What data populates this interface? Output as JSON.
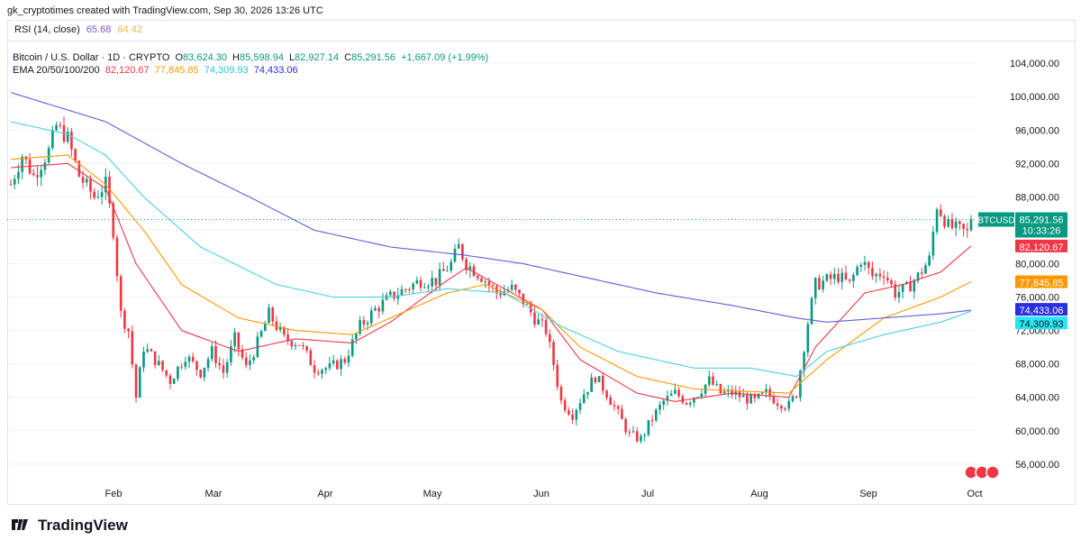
{
  "header": {
    "credit": "gk_cryptotimes created with TradingView.com, Sep 30, 2026 13:26 UTC"
  },
  "rsi": {
    "label": "RSI (14, close)",
    "value1": "65.68",
    "value2": "64.42",
    "color1": "#7e57c2",
    "color2": "#f0b44c"
  },
  "legend": {
    "symbol": "Bitcoin / U.S. Dollar · 1D · CRYPTO",
    "o_label": "O",
    "o_value": "83,624.30",
    "h_label": "H",
    "h_value": "85,598.94",
    "l_label": "L",
    "l_value": "82,927.14",
    "c_label": "C",
    "c_value": "85,291.56",
    "change": "+1,667.09 (+1.99%)",
    "ema_label": "EMA 20/50/100/200",
    "ema20": "82,120.67",
    "ema50": "77,845.85",
    "ema100": "74,309.93",
    "ema200": "74,433.06"
  },
  "badges": {
    "symbol": "BTCUSD",
    "price": "85,291.56",
    "countdown": "10:33:26"
  },
  "footer": {
    "brand": "TradingView"
  },
  "colors": {
    "up": "#089981",
    "down": "#f23645",
    "ema20": "#f23645",
    "ema50": "#ff9800",
    "ema100": "#4dd0e1",
    "ema200": "#5b5fd8",
    "grid": "#f0f3fa"
  },
  "chart_data": {
    "type": "candlestick",
    "symbol": "BTCUSD",
    "interval": "1D",
    "y_axis_ticks": [
      56000,
      60000,
      64000,
      68000,
      72000,
      76000,
      80000,
      84000,
      88000,
      92000,
      96000,
      100000,
      104000
    ],
    "y_tick_labels": [
      "56,000.00",
      "60,000.00",
      "64,000.00",
      "68,000.00",
      "72,000.00",
      "76,000.00",
      "80,000.00",
      "84,000.00",
      "88,000.00",
      "92,000.00",
      "96,000.00",
      "100,000.00",
      "104,000.00"
    ],
    "ylim": [
      53500,
      106500
    ],
    "x_tick_labels": [
      "Feb",
      "Mar",
      "Apr",
      "May",
      "Jun",
      "Jul",
      "Aug",
      "Sep",
      "Oct"
    ],
    "price_key": [
      {
        "day": 0,
        "price": 89500
      },
      {
        "day": 3,
        "price": 93000
      },
      {
        "day": 6,
        "price": 90500
      },
      {
        "day": 10,
        "price": 93500
      },
      {
        "day": 12,
        "price": 96500
      },
      {
        "day": 15,
        "price": 95000
      },
      {
        "day": 18,
        "price": 90500
      },
      {
        "day": 22,
        "price": 88000
      },
      {
        "day": 25,
        "price": 89500
      },
      {
        "day": 27,
        "price": 84000
      },
      {
        "day": 29,
        "price": 74000
      },
      {
        "day": 31,
        "price": 72000
      },
      {
        "day": 33,
        "price": 64000
      },
      {
        "day": 35,
        "price": 70000
      },
      {
        "day": 38,
        "price": 68500
      },
      {
        "day": 42,
        "price": 66000
      },
      {
        "day": 46,
        "price": 69000
      },
      {
        "day": 50,
        "price": 67000
      },
      {
        "day": 53,
        "price": 69500
      },
      {
        "day": 56,
        "price": 67000
      },
      {
        "day": 59,
        "price": 71000
      },
      {
        "day": 62,
        "price": 67500
      },
      {
        "day": 65,
        "price": 70500
      },
      {
        "day": 68,
        "price": 74000
      },
      {
        "day": 72,
        "price": 71000
      },
      {
        "day": 76,
        "price": 70500
      },
      {
        "day": 80,
        "price": 67500
      },
      {
        "day": 84,
        "price": 67500
      },
      {
        "day": 88,
        "price": 68500
      },
      {
        "day": 92,
        "price": 72500
      },
      {
        "day": 96,
        "price": 74500
      },
      {
        "day": 100,
        "price": 76000
      },
      {
        "day": 104,
        "price": 77000
      },
      {
        "day": 108,
        "price": 78000
      },
      {
        "day": 112,
        "price": 78000
      },
      {
        "day": 116,
        "price": 80000
      },
      {
        "day": 118,
        "price": 82000
      },
      {
        "day": 120,
        "price": 80000
      },
      {
        "day": 124,
        "price": 78500
      },
      {
        "day": 128,
        "price": 76500
      },
      {
        "day": 132,
        "price": 77000
      },
      {
        "day": 135,
        "price": 75500
      },
      {
        "day": 138,
        "price": 73500
      },
      {
        "day": 141,
        "price": 72000
      },
      {
        "day": 143,
        "price": 68000
      },
      {
        "day": 145,
        "price": 63500
      },
      {
        "day": 148,
        "price": 62000
      },
      {
        "day": 151,
        "price": 64500
      },
      {
        "day": 154,
        "price": 66500
      },
      {
        "day": 157,
        "price": 64500
      },
      {
        "day": 160,
        "price": 62000
      },
      {
        "day": 163,
        "price": 59500
      },
      {
        "day": 166,
        "price": 59000
      },
      {
        "day": 169,
        "price": 61500
      },
      {
        "day": 172,
        "price": 63500
      },
      {
        "day": 175,
        "price": 64500
      },
      {
        "day": 178,
        "price": 63500
      },
      {
        "day": 181,
        "price": 64500
      },
      {
        "day": 184,
        "price": 66000
      },
      {
        "day": 187,
        "price": 64500
      },
      {
        "day": 190,
        "price": 64500
      },
      {
        "day": 193,
        "price": 64000
      },
      {
        "day": 196,
        "price": 63500
      },
      {
        "day": 199,
        "price": 64500
      },
      {
        "day": 202,
        "price": 63500
      },
      {
        "day": 205,
        "price": 63000
      },
      {
        "day": 207,
        "price": 64500
      },
      {
        "day": 210,
        "price": 73000
      },
      {
        "day": 212,
        "price": 77500
      },
      {
        "day": 215,
        "price": 78000
      },
      {
        "day": 218,
        "price": 78500
      },
      {
        "day": 221,
        "price": 77500
      },
      {
        "day": 224,
        "price": 80500
      },
      {
        "day": 227,
        "price": 78500
      },
      {
        "day": 230,
        "price": 79000
      },
      {
        "day": 233,
        "price": 76500
      },
      {
        "day": 236,
        "price": 77000
      },
      {
        "day": 239,
        "price": 78500
      },
      {
        "day": 242,
        "price": 80500
      },
      {
        "day": 244,
        "price": 87000
      },
      {
        "day": 247,
        "price": 84500
      },
      {
        "day": 250,
        "price": 84000
      },
      {
        "day": 252,
        "price": 83700
      },
      {
        "day": 253,
        "price": 85291.56
      }
    ],
    "series": [
      {
        "name": "EMA 20",
        "key": [
          [
            0,
            91500
          ],
          [
            15,
            92000
          ],
          [
            25,
            89000
          ],
          [
            33,
            80000
          ],
          [
            45,
            72000
          ],
          [
            60,
            69500
          ],
          [
            75,
            71000
          ],
          [
            90,
            70500
          ],
          [
            100,
            73000
          ],
          [
            115,
            78000
          ],
          [
            120,
            79500
          ],
          [
            140,
            74500
          ],
          [
            150,
            68500
          ],
          [
            165,
            64500
          ],
          [
            175,
            63500
          ],
          [
            190,
            64500
          ],
          [
            205,
            64000
          ],
          [
            212,
            70000
          ],
          [
            225,
            76500
          ],
          [
            235,
            77500
          ],
          [
            245,
            79000
          ],
          [
            253,
            82120.67
          ]
        ]
      },
      {
        "name": "EMA 50",
        "key": [
          [
            0,
            92500
          ],
          [
            15,
            93000
          ],
          [
            25,
            89500
          ],
          [
            35,
            84000
          ],
          [
            45,
            77500
          ],
          [
            60,
            73500
          ],
          [
            75,
            72000
          ],
          [
            90,
            71500
          ],
          [
            100,
            73500
          ],
          [
            115,
            76500
          ],
          [
            125,
            77500
          ],
          [
            140,
            74500
          ],
          [
            150,
            70000
          ],
          [
            165,
            66500
          ],
          [
            180,
            65000
          ],
          [
            205,
            64500
          ],
          [
            215,
            68500
          ],
          [
            230,
            73500
          ],
          [
            245,
            76000
          ],
          [
            253,
            77845.85
          ]
        ]
      },
      {
        "name": "EMA 100",
        "key": [
          [
            0,
            97000
          ],
          [
            15,
            95500
          ],
          [
            25,
            93000
          ],
          [
            35,
            88000
          ],
          [
            50,
            82000
          ],
          [
            70,
            77500
          ],
          [
            85,
            76000
          ],
          [
            100,
            76000
          ],
          [
            115,
            77000
          ],
          [
            130,
            76500
          ],
          [
            145,
            72500
          ],
          [
            160,
            69500
          ],
          [
            180,
            67500
          ],
          [
            195,
            67500
          ],
          [
            207,
            66500
          ],
          [
            215,
            69500
          ],
          [
            230,
            71500
          ],
          [
            245,
            73000
          ],
          [
            253,
            74309.93
          ]
        ]
      },
      {
        "name": "EMA 200",
        "key": [
          [
            0,
            100500
          ],
          [
            25,
            97000
          ],
          [
            45,
            92000
          ],
          [
            65,
            87500
          ],
          [
            80,
            84000
          ],
          [
            100,
            82000
          ],
          [
            120,
            81000
          ],
          [
            135,
            80000
          ],
          [
            150,
            78500
          ],
          [
            170,
            76500
          ],
          [
            190,
            75000
          ],
          [
            207,
            73500
          ],
          [
            215,
            73000
          ],
          [
            230,
            73500
          ],
          [
            245,
            74000
          ],
          [
            253,
            74433.06
          ]
        ]
      }
    ]
  }
}
